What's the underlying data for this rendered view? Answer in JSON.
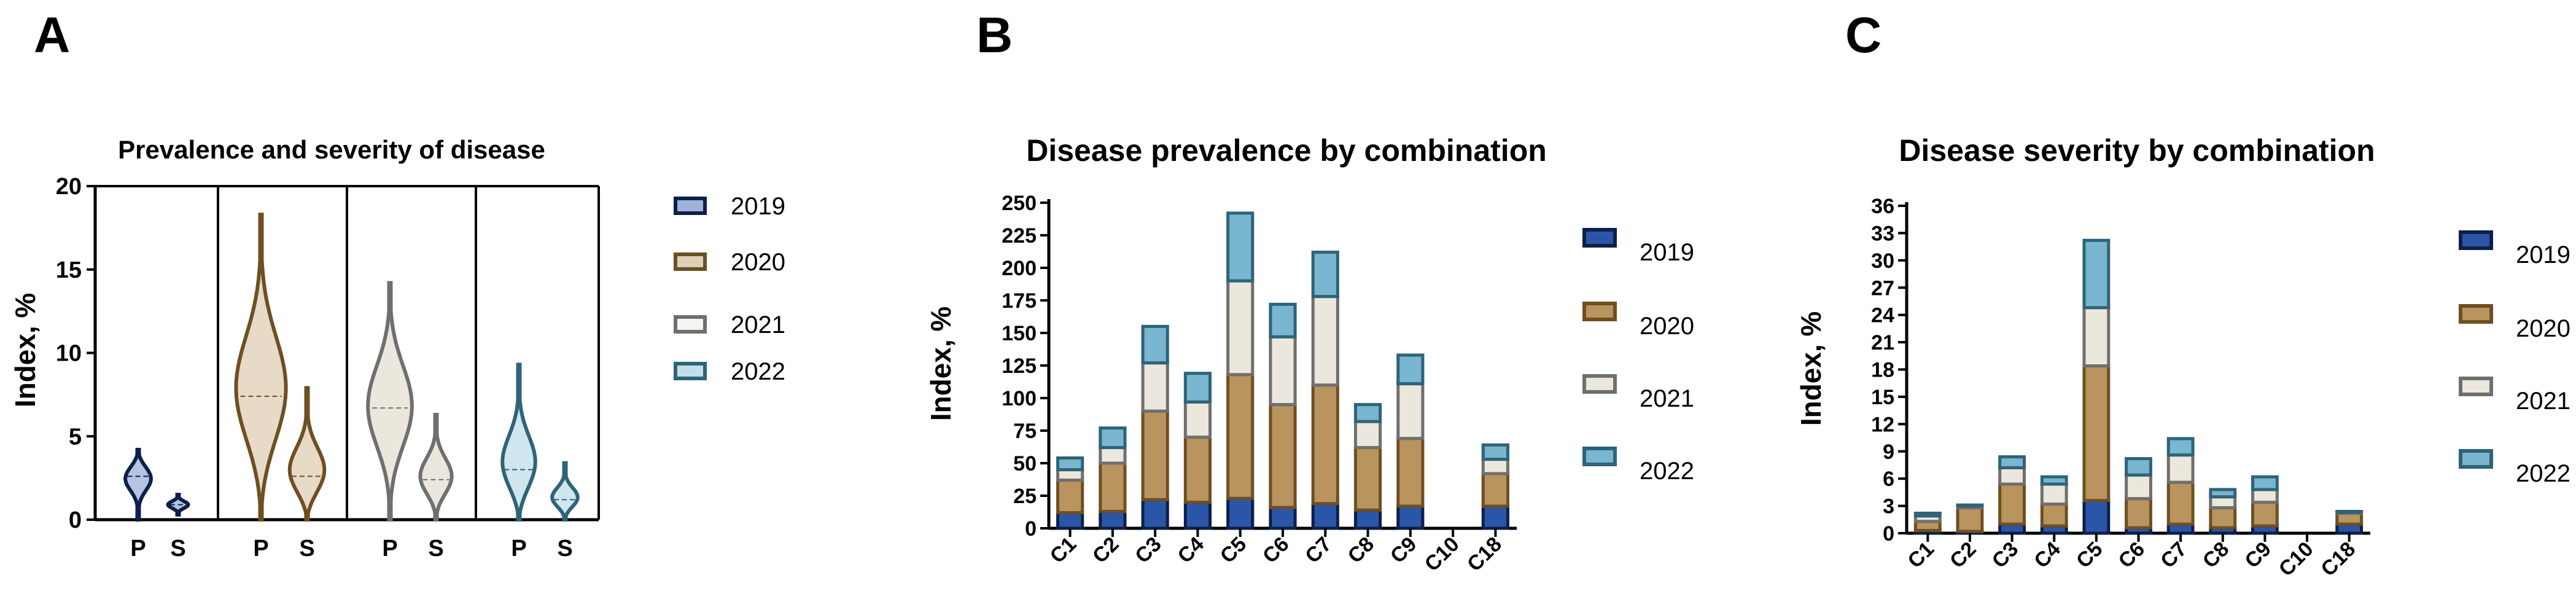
{
  "panels": {
    "a": {
      "letter": "A",
      "title": "Prevalence and severity of disease",
      "ylabel": "Index, %"
    },
    "b": {
      "letter": "B",
      "title": "Disease  prevalence by combination",
      "ylabel": "Index, %"
    },
    "c": {
      "letter": "C",
      "title": "Disease severity by combination",
      "ylabel": "Index, %"
    }
  },
  "legend_years": [
    "2019",
    "2020",
    "2021",
    "2022"
  ],
  "colors": {
    "2019": {
      "fill": "#2b56a8",
      "edge": "#0d1f4a"
    },
    "2020": {
      "fill": "#b9945f",
      "edge": "#6e4f22"
    },
    "2021": {
      "fill": "#ece7dd",
      "edge": "#6f6f6f"
    },
    "2022": {
      "fill": "#79b6cf",
      "edge": "#2f6378"
    }
  },
  "chart_data": [
    {
      "type": "violin",
      "title": "Prevalence and severity of disease",
      "ylabel": "Index, %",
      "ylim": [
        0,
        20
      ],
      "yticks": [
        0,
        5,
        10,
        15,
        20
      ],
      "groups": [
        {
          "year": "2019",
          "violins": [
            {
              "label": "P",
              "min": 0,
              "max": 4.2,
              "median": 2.6
            },
            {
              "label": "S",
              "min": 0.3,
              "max": 1.5,
              "median": 0.9
            }
          ]
        },
        {
          "year": "2020",
          "violins": [
            {
              "label": "P",
              "min": 0,
              "max": 18.3,
              "median": 7.4
            },
            {
              "label": "S",
              "min": 0,
              "max": 7.9,
              "median": 2.6
            }
          ]
        },
        {
          "year": "2021",
          "violins": [
            {
              "label": "P",
              "min": 0,
              "max": 14.2,
              "median": 6.7
            },
            {
              "label": "S",
              "min": 0,
              "max": 6.3,
              "median": 2.4
            }
          ]
        },
        {
          "year": "2022",
          "violins": [
            {
              "label": "P",
              "min": 0,
              "max": 9.3,
              "median": 3.0
            },
            {
              "label": "S",
              "min": 0,
              "max": 3.4,
              "median": 1.2
            }
          ]
        }
      ]
    },
    {
      "type": "bar",
      "stacked": true,
      "title": "Disease  prevalence by combination",
      "ylabel": "Index, %",
      "ylim": [
        0,
        250
      ],
      "yticks": [
        0,
        25,
        50,
        75,
        100,
        125,
        150,
        175,
        200,
        225,
        250
      ],
      "categories": [
        "C1",
        "C2",
        "C3",
        "C4",
        "C5",
        "C6",
        "C7",
        "C8",
        "C9",
        "C10",
        "C18"
      ],
      "series": [
        {
          "name": "2019",
          "values": [
            12,
            13,
            22,
            20,
            23,
            16,
            19,
            14,
            17,
            0,
            17
          ]
        },
        {
          "name": "2020",
          "values": [
            25,
            37,
            68,
            50,
            95,
            79,
            91,
            48,
            52,
            0,
            25
          ]
        },
        {
          "name": "2021",
          "values": [
            8,
            12,
            37,
            27,
            72,
            52,
            68,
            20,
            42,
            0,
            11
          ]
        },
        {
          "name": "2022",
          "values": [
            9,
            15,
            28,
            22,
            52,
            25,
            34,
            13,
            22,
            0,
            11
          ]
        }
      ]
    },
    {
      "type": "bar",
      "stacked": true,
      "title": "Disease severity by combination",
      "ylabel": "Index, %",
      "ylim": [
        0,
        36
      ],
      "yticks": [
        0,
        3,
        6,
        9,
        12,
        15,
        18,
        21,
        24,
        27,
        30,
        33,
        36
      ],
      "categories": [
        "C1",
        "C2",
        "C3",
        "C4",
        "C5",
        "C6",
        "C7",
        "C8",
        "C9",
        "C10",
        "C18"
      ],
      "series": [
        {
          "name": "2019",
          "values": [
            0.3,
            0.2,
            1.0,
            0.8,
            3.6,
            0.6,
            1.0,
            0.6,
            0.8,
            0,
            1.0
          ]
        },
        {
          "name": "2020",
          "values": [
            1.0,
            2.6,
            4.4,
            2.4,
            14.8,
            3.2,
            4.6,
            2.2,
            2.6,
            0,
            1.2
          ]
        },
        {
          "name": "2021",
          "values": [
            0.6,
            0.2,
            1.8,
            2.2,
            6.4,
            2.6,
            3.0,
            1.2,
            1.4,
            0,
            0.1
          ]
        },
        {
          "name": "2022",
          "values": [
            0.3,
            0.1,
            1.2,
            0.8,
            7.4,
            1.8,
            1.8,
            0.8,
            1.4,
            0,
            0.1
          ]
        }
      ]
    }
  ]
}
